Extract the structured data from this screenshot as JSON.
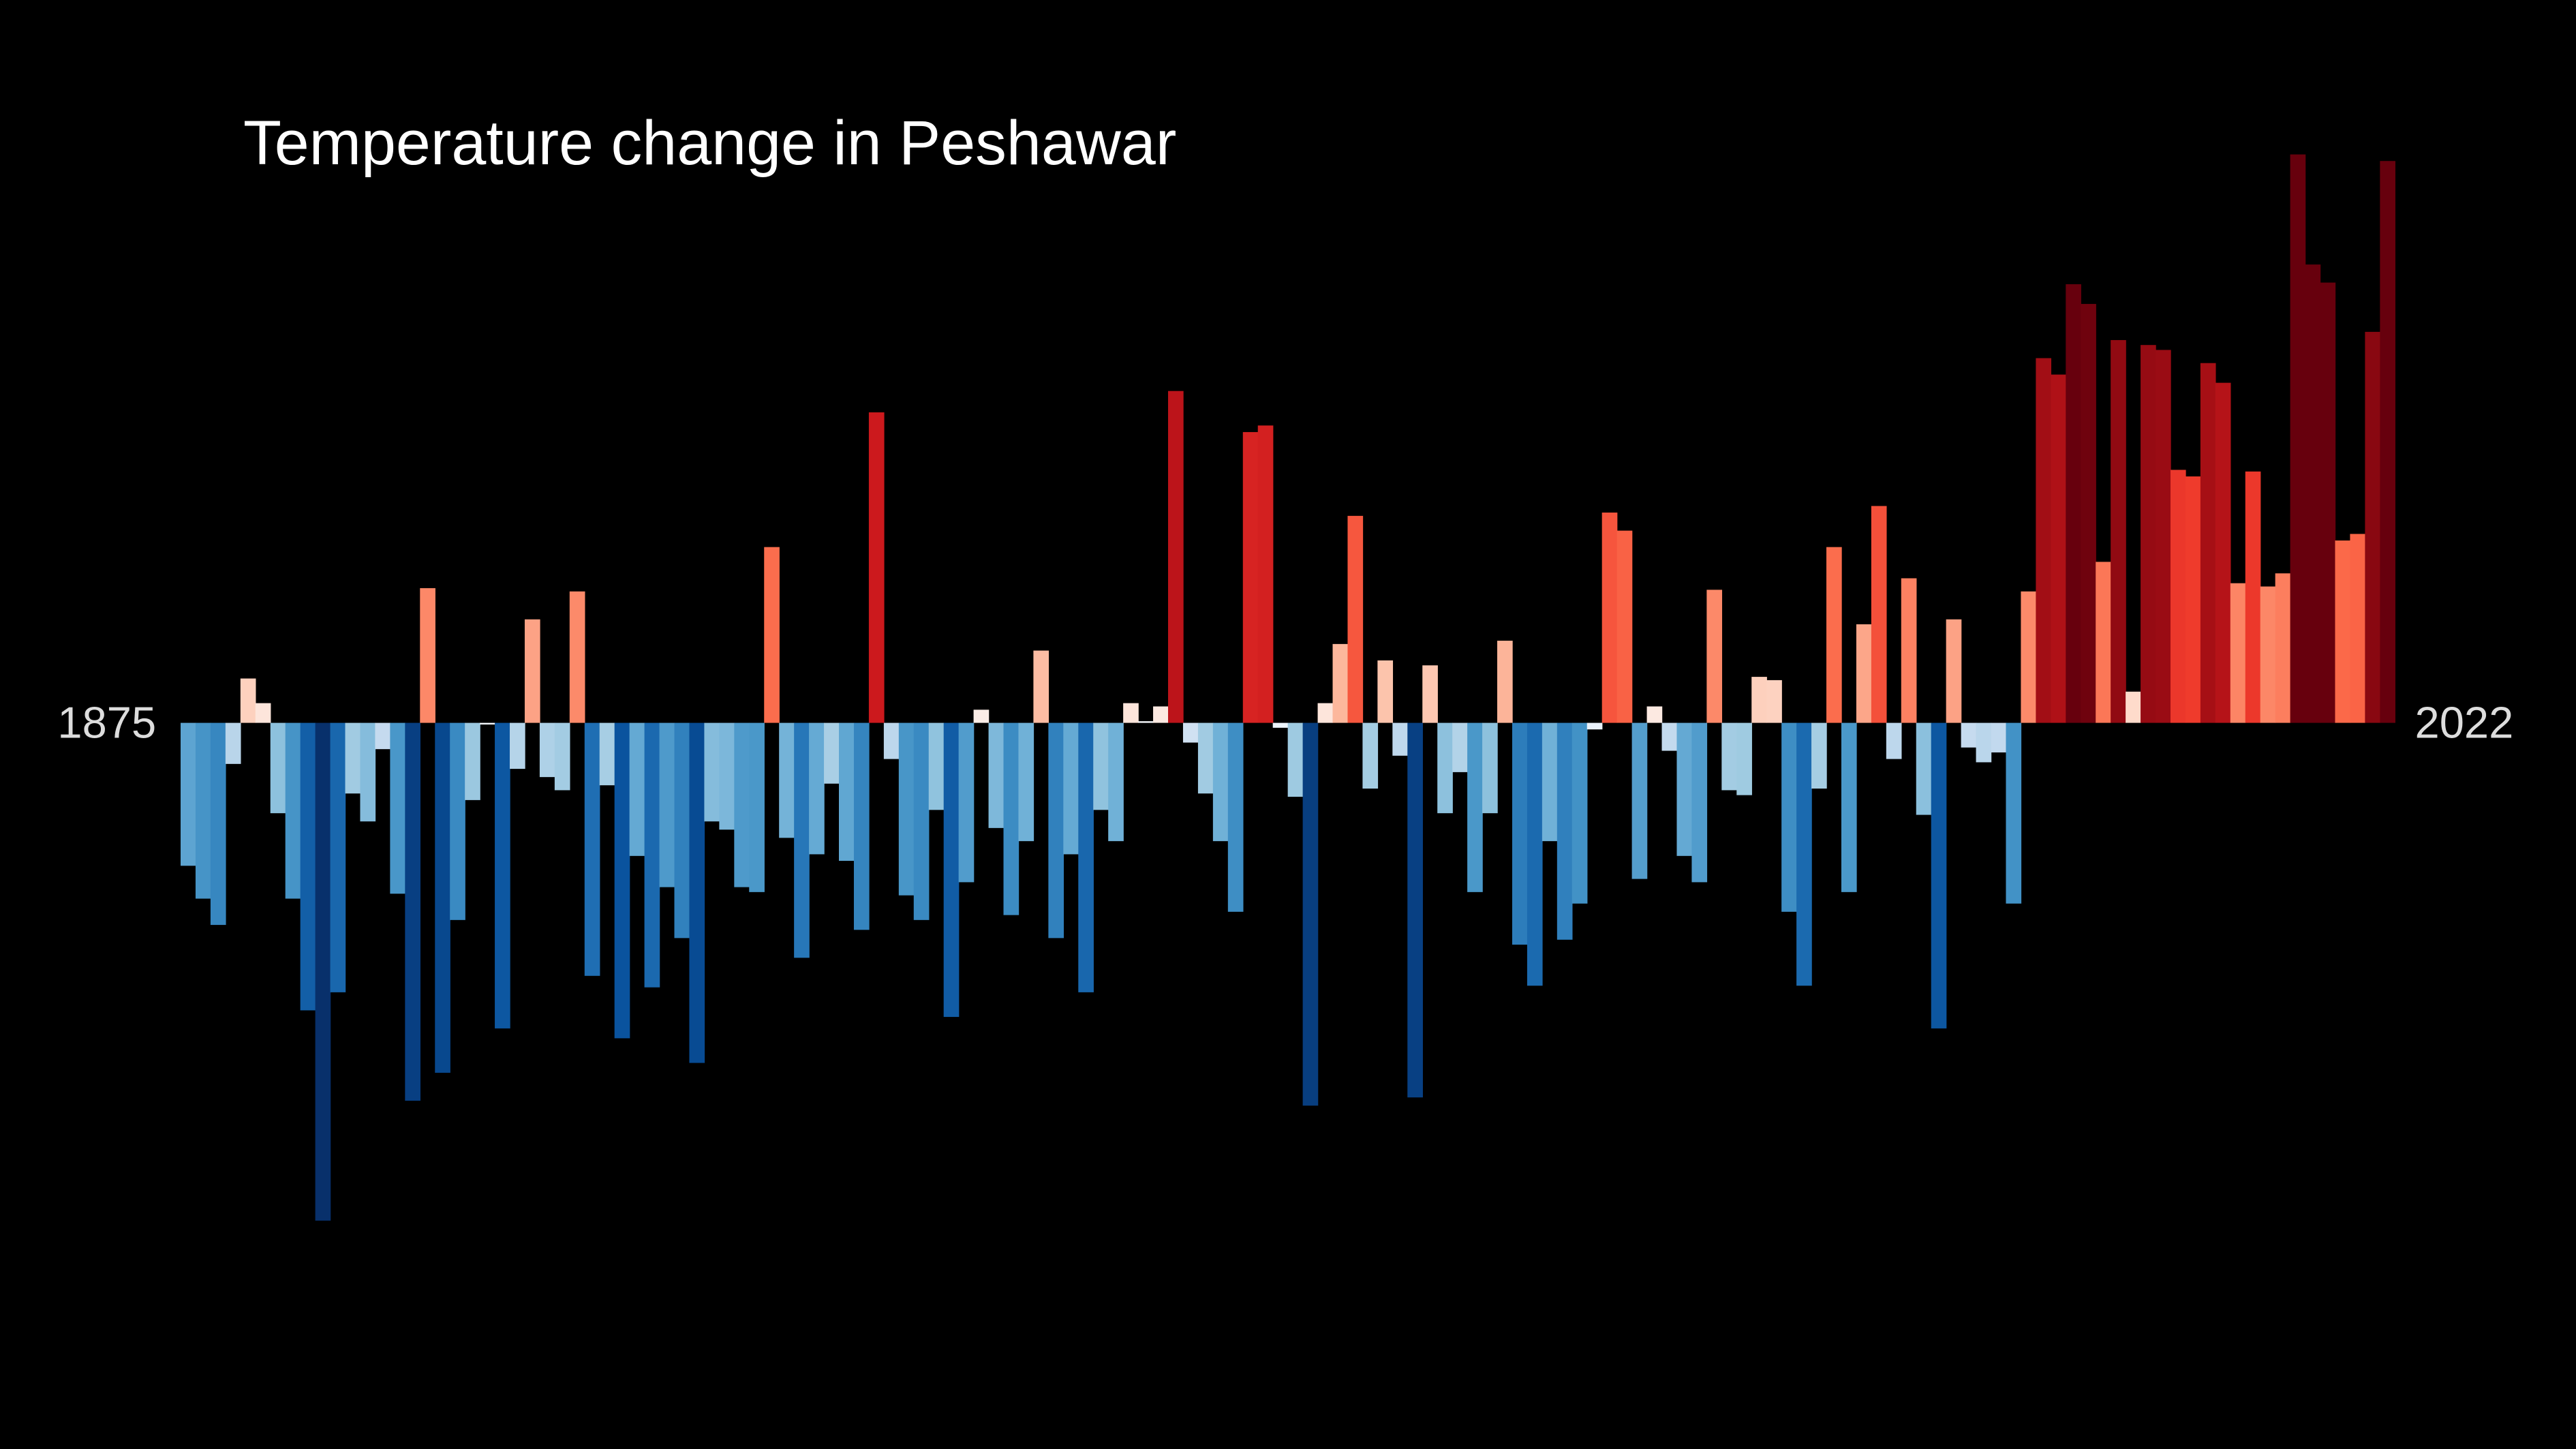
{
  "chart_data": {
    "type": "bar",
    "title": "Temperature change in Peshawar",
    "x": [
      1875,
      1876,
      1877,
      1878,
      1879,
      1880,
      1881,
      1882,
      1883,
      1884,
      1885,
      1886,
      1887,
      1888,
      1889,
      1890,
      1891,
      1892,
      1893,
      1894,
      1895,
      1896,
      1897,
      1898,
      1899,
      1900,
      1901,
      1902,
      1903,
      1904,
      1905,
      1906,
      1907,
      1908,
      1909,
      1910,
      1911,
      1912,
      1913,
      1914,
      1915,
      1916,
      1917,
      1918,
      1919,
      1920,
      1921,
      1922,
      1923,
      1924,
      1925,
      1926,
      1927,
      1928,
      1929,
      1930,
      1931,
      1932,
      1933,
      1934,
      1935,
      1936,
      1937,
      1938,
      1939,
      1940,
      1941,
      1942,
      1943,
      1944,
      1945,
      1946,
      1947,
      1948,
      1949,
      1950,
      1951,
      1952,
      1953,
      1954,
      1955,
      1956,
      1957,
      1958,
      1959,
      1960,
      1961,
      1962,
      1963,
      1964,
      1965,
      1966,
      1967,
      1968,
      1969,
      1970,
      1971,
      1972,
      1973,
      1974,
      1975,
      1976,
      1977,
      1978,
      1979,
      1980,
      1981,
      1982,
      1983,
      1984,
      1985,
      1986,
      1987,
      1988,
      1989,
      1990,
      1991,
      1992,
      1993,
      1994,
      1995,
      1996,
      1997,
      1998,
      1999,
      2000,
      2001,
      2002,
      2003,
      2004,
      2005,
      2006,
      2007,
      2008,
      2009,
      2010,
      2011,
      2012,
      2013,
      2014,
      2015,
      2016,
      2017,
      2018,
      2019,
      2020,
      2021,
      2022
    ],
    "values": [
      -0.87,
      -1.07,
      -1.23,
      -0.25,
      0.27,
      0.12,
      -0.55,
      -1.07,
      -1.75,
      -3.03,
      -1.64,
      -0.43,
      -0.6,
      -0.16,
      -1.04,
      -2.3,
      0.82,
      -2.13,
      -1.2,
      -0.47,
      -0.01,
      -1.86,
      -0.28,
      0.63,
      -0.33,
      -0.41,
      0.8,
      -1.54,
      -0.38,
      -1.92,
      -0.81,
      -1.61,
      -1.0,
      -1.31,
      -2.07,
      -0.6,
      -0.65,
      -1.0,
      -1.03,
      1.07,
      -0.7,
      -1.43,
      -0.8,
      -0.37,
      -0.84,
      -1.26,
      1.89,
      -0.22,
      -1.05,
      -1.2,
      -0.53,
      -1.79,
      -0.97,
      0.08,
      -0.64,
      -1.17,
      -0.72,
      0.44,
      -1.31,
      -0.8,
      -1.64,
      -0.53,
      -0.72,
      0.12,
      0.01,
      0.1,
      2.02,
      -0.12,
      -0.43,
      -0.72,
      -1.15,
      1.77,
      1.81,
      -0.03,
      -0.45,
      -2.33,
      0.12,
      0.48,
      1.26,
      -0.4,
      0.38,
      -0.2,
      -2.28,
      0.35,
      -0.55,
      -0.3,
      -1.03,
      -0.55,
      0.5,
      -1.35,
      -1.6,
      -0.72,
      -1.32,
      -1.1,
      -0.04,
      1.28,
      1.17,
      -0.95,
      0.1,
      -0.17,
      -0.81,
      -0.97,
      0.81,
      -0.41,
      -0.44,
      0.28,
      0.26,
      -1.15,
      -1.6,
      -0.4,
      1.07,
      -1.03,
      0.6,
      1.32,
      -0.22,
      0.88,
      -0.56,
      -1.86,
      0.63,
      -0.15,
      -0.24,
      -0.18,
      -1.1,
      0.8,
      2.22,
      2.12,
      2.67,
      2.55,
      0.98,
      2.33,
      0.19,
      2.3,
      2.27,
      1.54,
      1.5,
      2.19,
      2.07,
      0.85,
      1.53,
      0.83,
      0.91,
      3.46,
      2.79,
      2.68,
      1.11,
      1.15,
      2.38,
      3.42
    ],
    "xlim": [
      1875,
      2022
    ],
    "xticks": [
      1875,
      2022
    ],
    "ylim": [
      -4.42,
      4.4
    ],
    "colormap": [
      {
        "value": -2.6,
        "color": "#08306b"
      },
      {
        "value": -1.95,
        "color": "#08519c"
      },
      {
        "value": -1.5,
        "color": "#2171b5"
      },
      {
        "value": -1.1,
        "color": "#4292c6"
      },
      {
        "value": -0.75,
        "color": "#6baed6"
      },
      {
        "value": -0.45,
        "color": "#9ecae1"
      },
      {
        "value": -0.15,
        "color": "#c6dbef"
      },
      {
        "value": 0,
        "color": "#f7fbff"
      },
      {
        "value": 0.15,
        "color": "#fee0d2"
      },
      {
        "value": 0.45,
        "color": "#fcbba1"
      },
      {
        "value": 0.8,
        "color": "#fc8a6a"
      },
      {
        "value": 1.1,
        "color": "#fb6a4a"
      },
      {
        "value": 1.5,
        "color": "#ef3b2c"
      },
      {
        "value": 1.9,
        "color": "#cb181d"
      },
      {
        "value": 2.2,
        "color": "#a50f15"
      },
      {
        "value": 2.6,
        "color": "#67000d"
      }
    ],
    "background": "#000000"
  }
}
